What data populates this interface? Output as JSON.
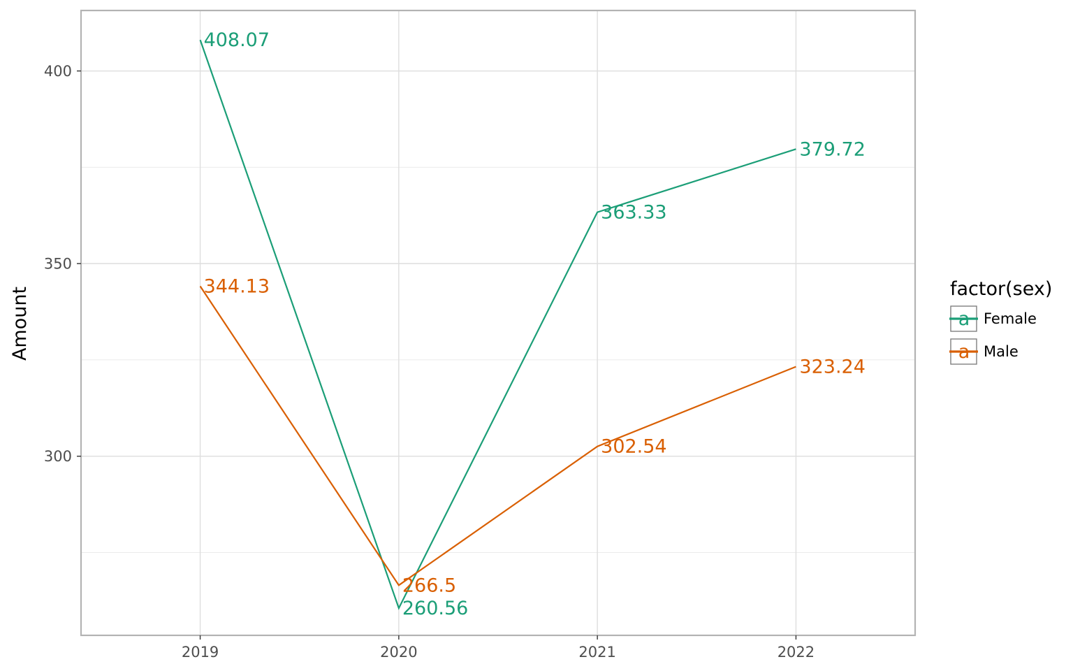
{
  "chart_data": {
    "type": "line",
    "x": [
      2019,
      2020,
      2021,
      2022
    ],
    "x_tick_labels": [
      "2019",
      "2020",
      "2021",
      "2022"
    ],
    "ylabel": "Amount",
    "y_ticks": [
      300,
      350,
      400
    ],
    "y_tick_labels": [
      "300",
      "350",
      "400"
    ],
    "ylim": [
      253.5,
      415.7
    ],
    "xlim": [
      2018.4,
      2022.6
    ],
    "grid": true,
    "legend": {
      "title": "factor(sex)",
      "placement": "right",
      "key_glyph": "a"
    },
    "series": [
      {
        "name": "Female",
        "color": "#1b9e77",
        "values": [
          408.07,
          260.56,
          363.33,
          379.72
        ],
        "labels": [
          "408.07",
          "260.56",
          "363.33",
          "379.72"
        ]
      },
      {
        "name": "Male",
        "color": "#d95f02",
        "values": [
          344.13,
          266.5,
          302.54,
          323.24
        ],
        "labels": [
          "344.13",
          "266.5",
          "302.54",
          "323.24"
        ]
      }
    ]
  }
}
